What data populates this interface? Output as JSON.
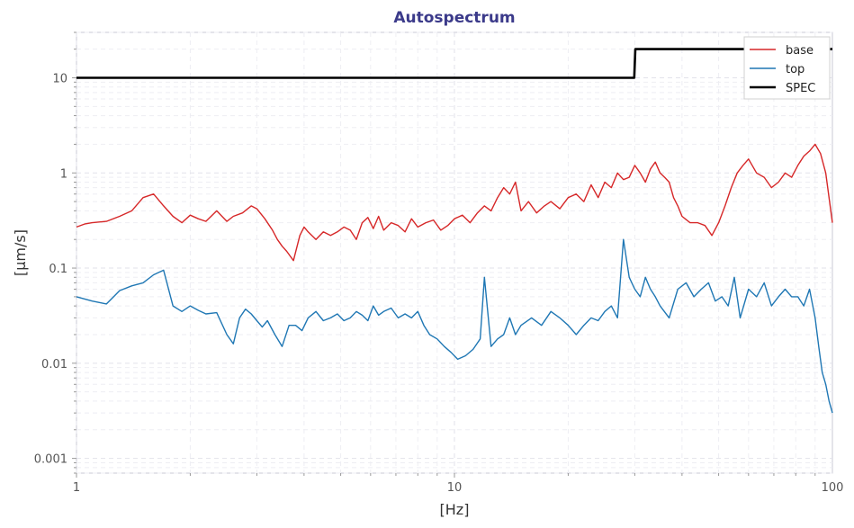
{
  "chart_data": {
    "type": "line",
    "title": "Autospectrum",
    "xlabel": "[Hz]",
    "ylabel": "[µm/s]",
    "xscale": "log",
    "yscale": "log",
    "xlim": [
      1,
      100
    ],
    "ylim": [
      0.0007,
      30
    ],
    "grid": true,
    "legend_position": "top-right",
    "xticks": [
      {
        "value": 1,
        "label": "1"
      },
      {
        "value": 10,
        "label": "10"
      },
      {
        "value": 100,
        "label": "100"
      }
    ],
    "yticks": [
      {
        "value": 0.001,
        "label": "0.001"
      },
      {
        "value": 0.01,
        "label": "0.01"
      },
      {
        "value": 0.1,
        "label": "0.1"
      },
      {
        "value": 1,
        "label": "1"
      },
      {
        "value": 10,
        "label": "10"
      }
    ],
    "series": [
      {
        "name": "base",
        "color": "#d62728",
        "x": [
          1.0,
          1.05,
          1.1,
          1.2,
          1.3,
          1.4,
          1.5,
          1.6,
          1.7,
          1.8,
          1.9,
          2.0,
          2.1,
          2.2,
          2.35,
          2.5,
          2.6,
          2.75,
          2.9,
          3.0,
          3.15,
          3.3,
          3.4,
          3.5,
          3.6,
          3.75,
          3.9,
          4.0,
          4.1,
          4.3,
          4.5,
          4.7,
          4.9,
          5.1,
          5.3,
          5.5,
          5.7,
          5.9,
          6.1,
          6.3,
          6.5,
          6.8,
          7.1,
          7.4,
          7.7,
          8.0,
          8.4,
          8.8,
          9.2,
          9.6,
          10.0,
          10.5,
          11.0,
          11.5,
          12.0,
          12.5,
          13.0,
          13.5,
          14.0,
          14.5,
          15.0,
          15.7,
          16.5,
          17.3,
          18.0,
          19.0,
          20.0,
          21.0,
          22.0,
          23.0,
          24.0,
          25.0,
          26.0,
          27.0,
          28.0,
          29.0,
          30.0,
          31.0,
          32.0,
          33.0,
          34.0,
          35.0,
          36.0,
          37.0,
          38.0,
          39.0,
          40.0,
          42.0,
          44.0,
          46.0,
          48.0,
          50.0,
          52.0,
          54.0,
          56.0,
          58.0,
          60.0,
          63.0,
          66.0,
          69.0,
          72.0,
          75.0,
          78.0,
          81.0,
          84.0,
          87.0,
          90.0,
          93.0,
          96.0,
          100.0
        ],
        "values": [
          0.27,
          0.29,
          0.3,
          0.31,
          0.35,
          0.4,
          0.55,
          0.6,
          0.45,
          0.35,
          0.3,
          0.36,
          0.33,
          0.31,
          0.4,
          0.31,
          0.35,
          0.38,
          0.45,
          0.42,
          0.33,
          0.25,
          0.2,
          0.17,
          0.15,
          0.12,
          0.22,
          0.27,
          0.24,
          0.2,
          0.24,
          0.22,
          0.24,
          0.27,
          0.25,
          0.2,
          0.3,
          0.34,
          0.26,
          0.35,
          0.25,
          0.3,
          0.28,
          0.24,
          0.33,
          0.27,
          0.3,
          0.32,
          0.25,
          0.28,
          0.33,
          0.36,
          0.3,
          0.38,
          0.45,
          0.4,
          0.55,
          0.7,
          0.6,
          0.8,
          0.4,
          0.5,
          0.38,
          0.45,
          0.5,
          0.42,
          0.55,
          0.6,
          0.5,
          0.75,
          0.55,
          0.8,
          0.7,
          1.0,
          0.85,
          0.9,
          1.2,
          1.0,
          0.8,
          1.1,
          1.3,
          1.0,
          0.9,
          0.8,
          0.55,
          0.45,
          0.35,
          0.3,
          0.3,
          0.28,
          0.22,
          0.3,
          0.45,
          0.7,
          1.0,
          1.2,
          1.4,
          1.0,
          0.9,
          0.7,
          0.8,
          1.0,
          0.9,
          1.2,
          1.5,
          1.7,
          2.0,
          1.6,
          1.0,
          0.3
        ]
      },
      {
        "name": "top",
        "color": "#1f77b4",
        "x": [
          1.0,
          1.1,
          1.2,
          1.3,
          1.4,
          1.5,
          1.6,
          1.65,
          1.7,
          1.8,
          1.9,
          2.0,
          2.1,
          2.2,
          2.35,
          2.5,
          2.6,
          2.7,
          2.8,
          2.9,
          3.0,
          3.1,
          3.2,
          3.35,
          3.5,
          3.65,
          3.8,
          3.95,
          4.1,
          4.3,
          4.5,
          4.7,
          4.9,
          5.1,
          5.3,
          5.5,
          5.7,
          5.9,
          6.1,
          6.3,
          6.5,
          6.8,
          7.1,
          7.4,
          7.7,
          8.0,
          8.3,
          8.6,
          9.0,
          9.4,
          9.8,
          10.2,
          10.7,
          11.2,
          11.7,
          12.0,
          12.5,
          13.0,
          13.5,
          14.0,
          14.5,
          15.0,
          16.0,
          17.0,
          18.0,
          19.0,
          20.0,
          21.0,
          22.0,
          23.0,
          24.0,
          25.0,
          26.0,
          27.0,
          28.0,
          29.0,
          30.0,
          31.0,
          32.0,
          33.0,
          34.0,
          35.0,
          37.0,
          39.0,
          41.0,
          43.0,
          45.0,
          47.0,
          49.0,
          51.0,
          53.0,
          55.0,
          57.0,
          60.0,
          63.0,
          66.0,
          69.0,
          72.0,
          75.0,
          78.0,
          81.0,
          84.0,
          87.0,
          90.0,
          92.0,
          94.0,
          96.0,
          98.0,
          100.0
        ],
        "values": [
          0.05,
          0.045,
          0.042,
          0.058,
          0.065,
          0.07,
          0.085,
          0.09,
          0.095,
          0.04,
          0.035,
          0.04,
          0.036,
          0.033,
          0.034,
          0.02,
          0.016,
          0.03,
          0.037,
          0.033,
          0.028,
          0.024,
          0.028,
          0.02,
          0.015,
          0.025,
          0.025,
          0.022,
          0.03,
          0.035,
          0.028,
          0.03,
          0.033,
          0.028,
          0.03,
          0.035,
          0.032,
          0.028,
          0.04,
          0.032,
          0.035,
          0.038,
          0.03,
          0.033,
          0.03,
          0.035,
          0.025,
          0.02,
          0.018,
          0.015,
          0.013,
          0.011,
          0.012,
          0.014,
          0.018,
          0.08,
          0.015,
          0.018,
          0.02,
          0.03,
          0.02,
          0.025,
          0.03,
          0.025,
          0.035,
          0.03,
          0.025,
          0.02,
          0.025,
          0.03,
          0.028,
          0.035,
          0.04,
          0.03,
          0.2,
          0.08,
          0.06,
          0.05,
          0.08,
          0.06,
          0.05,
          0.04,
          0.03,
          0.06,
          0.07,
          0.05,
          0.06,
          0.07,
          0.045,
          0.05,
          0.04,
          0.08,
          0.03,
          0.06,
          0.05,
          0.07,
          0.04,
          0.05,
          0.06,
          0.05,
          0.05,
          0.04,
          0.06,
          0.03,
          0.015,
          0.008,
          0.006,
          0.004,
          0.003
        ]
      },
      {
        "name": "SPEC",
        "color": "#000000",
        "x": [
          1,
          29.9,
          30.1,
          100
        ],
        "values": [
          10,
          10,
          20,
          20
        ]
      }
    ]
  }
}
